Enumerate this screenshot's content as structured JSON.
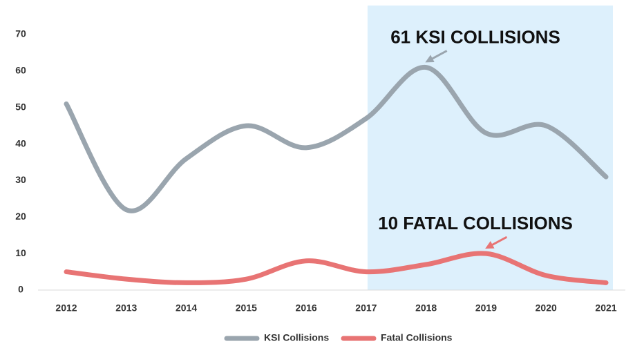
{
  "chart_data": {
    "type": "line",
    "categories": [
      "2012",
      "2013",
      "2014",
      "2015",
      "2016",
      "2017",
      "2018",
      "2019",
      "2020",
      "2021"
    ],
    "series": [
      {
        "name": "KSI Collisions",
        "color": "#9aa5ae",
        "values": [
          51,
          22,
          36,
          45,
          39,
          47,
          61,
          43,
          45,
          31
        ]
      },
      {
        "name": "Fatal Collisions",
        "color": "#e87474",
        "values": [
          5,
          3,
          2,
          3,
          8,
          5,
          7,
          10,
          4,
          2
        ]
      }
    ],
    "ylim": [
      0,
      70
    ],
    "yticks": [
      0,
      10,
      20,
      30,
      40,
      50,
      60,
      70
    ],
    "highlight_range": [
      "2017",
      "2021"
    ],
    "highlight_color": "#ddf0fc",
    "annotations": [
      {
        "text": "61 KSI COLLISIONS",
        "series": 0,
        "category": "2018"
      },
      {
        "text": "10 FATAL COLLISIONS",
        "series": 1,
        "category": "2019"
      }
    ],
    "legend": "bottom"
  }
}
